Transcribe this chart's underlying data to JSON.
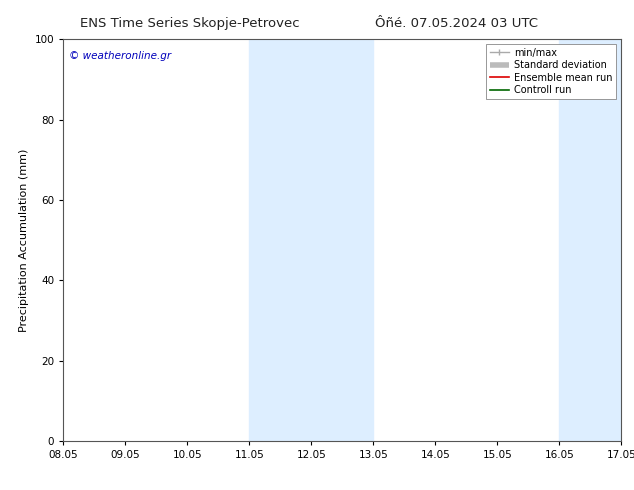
{
  "title_left": "ENS Time Series Skopje-Petrovec",
  "title_right": "Ôñé. 07.05.2024 03 UTC",
  "ylabel": "Precipitation Accumulation (mm)",
  "ylim": [
    0,
    100
  ],
  "yticks": [
    0,
    20,
    40,
    60,
    80,
    100
  ],
  "xtick_labels": [
    "08.05",
    "09.05",
    "10.05",
    "11.05",
    "12.05",
    "13.05",
    "14.05",
    "15.05",
    "16.05",
    "17.05"
  ],
  "xlim": [
    0,
    9
  ],
  "xtick_positions": [
    0,
    1,
    2,
    3,
    4,
    5,
    6,
    7,
    8,
    9
  ],
  "shaded_bands": [
    {
      "x_start": 3,
      "x_end": 5,
      "color": "#ddeeff"
    },
    {
      "x_start": 8,
      "x_end": 9,
      "color": "#ddeeff"
    }
  ],
  "copyright_text": "© weatheronline.gr",
  "copyright_color": "#0000bb",
  "legend_items": [
    {
      "label": "min/max",
      "color": "#aaaaaa",
      "lw": 1.0
    },
    {
      "label": "Standard deviation",
      "color": "#bbbbbb",
      "lw": 4
    },
    {
      "label": "Ensemble mean run",
      "color": "#dd0000",
      "lw": 1.2
    },
    {
      "label": "Controll run",
      "color": "#006600",
      "lw": 1.2
    }
  ],
  "bg_color": "#ffffff",
  "title_fontsize": 9.5,
  "tick_fontsize": 7.5,
  "ylabel_fontsize": 8,
  "legend_fontsize": 7,
  "copyright_fontsize": 7.5
}
